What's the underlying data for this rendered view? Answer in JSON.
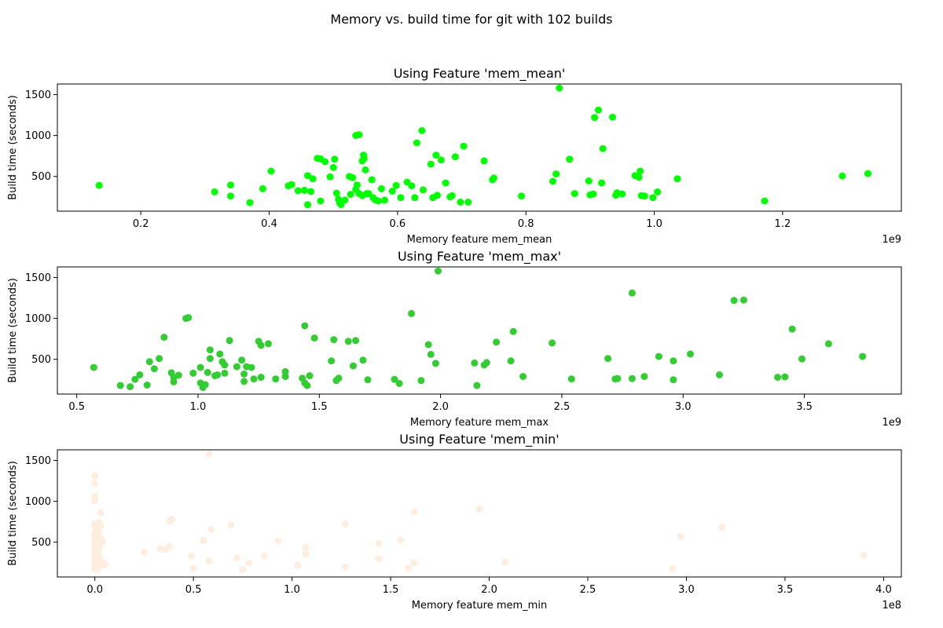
{
  "figure": {
    "suptitle": "Memory vs. build time for git with 102 builds"
  },
  "chart_data": [
    {
      "type": "scatter",
      "title": "Using Feature 'mem_mean'",
      "xlabel": "Memory feature mem_mean",
      "ylabel": "Build time (seconds)",
      "x_offset_label": "1e9",
      "x_ticks": [
        0.2,
        0.4,
        0.6,
        0.8,
        1.0,
        1.2
      ],
      "x_tick_labels": [
        "0.2",
        "0.4",
        "0.6",
        "0.8",
        "1.0",
        "1.2"
      ],
      "y_ticks": [
        500,
        1000,
        1500
      ],
      "y_tick_labels": [
        "500",
        "1000",
        "1500"
      ],
      "xlim": [
        0.07,
        1.385
      ],
      "ylim": [
        75,
        1630
      ],
      "color": "#00ff00",
      "grid": false,
      "points": [
        [
          0.135,
          390
        ],
        [
          0.315,
          310
        ],
        [
          0.34,
          395
        ],
        [
          0.34,
          260
        ],
        [
          0.37,
          180
        ],
        [
          0.39,
          350
        ],
        [
          0.403,
          565
        ],
        [
          0.43,
          385
        ],
        [
          0.435,
          400
        ],
        [
          0.445,
          325
        ],
        [
          0.455,
          330
        ],
        [
          0.46,
          155
        ],
        [
          0.46,
          510
        ],
        [
          0.465,
          315
        ],
        [
          0.468,
          470
        ],
        [
          0.475,
          720
        ],
        [
          0.48,
          715
        ],
        [
          0.48,
          200
        ],
        [
          0.487,
          680
        ],
        [
          0.495,
          495
        ],
        [
          0.5,
          610
        ],
        [
          0.502,
          710
        ],
        [
          0.505,
          295
        ],
        [
          0.508,
          220
        ],
        [
          0.51,
          175
        ],
        [
          0.512,
          155
        ],
        [
          0.518,
          210
        ],
        [
          0.525,
          500
        ],
        [
          0.527,
          280
        ],
        [
          0.53,
          485
        ],
        [
          0.535,
          340
        ],
        [
          0.535,
          1000
        ],
        [
          0.537,
          395
        ],
        [
          0.54,
          1010
        ],
        [
          0.54,
          290
        ],
        [
          0.545,
          265
        ],
        [
          0.545,
          690
        ],
        [
          0.547,
          760
        ],
        [
          0.548,
          720
        ],
        [
          0.55,
          580
        ],
        [
          0.552,
          290
        ],
        [
          0.555,
          290
        ],
        [
          0.56,
          460
        ],
        [
          0.562,
          240
        ],
        [
          0.565,
          215
        ],
        [
          0.57,
          200
        ],
        [
          0.575,
          350
        ],
        [
          0.58,
          210
        ],
        [
          0.592,
          320
        ],
        [
          0.598,
          390
        ],
        [
          0.605,
          240
        ],
        [
          0.615,
          430
        ],
        [
          0.622,
          385
        ],
        [
          0.627,
          240
        ],
        [
          0.63,
          910
        ],
        [
          0.638,
          1060
        ],
        [
          0.64,
          335
        ],
        [
          0.652,
          650
        ],
        [
          0.655,
          240
        ],
        [
          0.66,
          760
        ],
        [
          0.662,
          270
        ],
        [
          0.668,
          700
        ],
        [
          0.675,
          420
        ],
        [
          0.682,
          250
        ],
        [
          0.685,
          265
        ],
        [
          0.69,
          740
        ],
        [
          0.698,
          185
        ],
        [
          0.703,
          870
        ],
        [
          0.71,
          185
        ],
        [
          0.735,
          690
        ],
        [
          0.748,
          460
        ],
        [
          0.75,
          480
        ],
        [
          0.793,
          260
        ],
        [
          0.842,
          440
        ],
        [
          0.847,
          530
        ],
        [
          0.852,
          1580
        ],
        [
          0.868,
          710
        ],
        [
          0.876,
          290
        ],
        [
          0.898,
          445
        ],
        [
          0.9,
          275
        ],
        [
          0.905,
          285
        ],
        [
          0.907,
          1220
        ],
        [
          0.913,
          1310
        ],
        [
          0.918,
          420
        ],
        [
          0.92,
          840
        ],
        [
          0.935,
          1225
        ],
        [
          0.94,
          270
        ],
        [
          0.942,
          300
        ],
        [
          0.95,
          285
        ],
        [
          0.97,
          510
        ],
        [
          0.976,
          490
        ],
        [
          0.978,
          565
        ],
        [
          0.98,
          265
        ],
        [
          0.985,
          260
        ],
        [
          0.998,
          240
        ],
        [
          1.005,
          310
        ],
        [
          1.036,
          470
        ],
        [
          1.172,
          200
        ],
        [
          1.293,
          505
        ],
        [
          1.333,
          535
        ]
      ]
    },
    {
      "type": "scatter",
      "title": "Using Feature 'mem_max'",
      "xlabel": "Memory feature mem_max",
      "ylabel": "Build time (seconds)",
      "x_offset_label": "1e9",
      "x_ticks": [
        0.5,
        1.0,
        1.5,
        2.0,
        2.5,
        3.0,
        3.5
      ],
      "x_tick_labels": [
        "0.5",
        "1.0",
        "1.5",
        "2.0",
        "2.5",
        "3.0",
        "3.5"
      ],
      "y_ticks": [
        500,
        1000,
        1500
      ],
      "y_tick_labels": [
        "500",
        "1000",
        "1500"
      ],
      "xlim": [
        0.42,
        3.9
      ],
      "ylim": [
        75,
        1630
      ],
      "color": "#33cc33",
      "grid": false,
      "points": [
        [
          0.57,
          400
        ],
        [
          0.68,
          180
        ],
        [
          0.72,
          165
        ],
        [
          0.74,
          255
        ],
        [
          0.76,
          310
        ],
        [
          0.79,
          185
        ],
        [
          0.8,
          470
        ],
        [
          0.82,
          385
        ],
        [
          0.84,
          510
        ],
        [
          0.86,
          770
        ],
        [
          0.89,
          335
        ],
        [
          0.9,
          225
        ],
        [
          0.9,
          280
        ],
        [
          0.92,
          305
        ],
        [
          0.95,
          1000
        ],
        [
          0.96,
          1010
        ],
        [
          0.98,
          330
        ],
        [
          1.01,
          400
        ],
        [
          1.01,
          210
        ],
        [
          1.02,
          155
        ],
        [
          1.03,
          190
        ],
        [
          1.04,
          340
        ],
        [
          1.05,
          615
        ],
        [
          1.05,
          510
        ],
        [
          1.07,
          300
        ],
        [
          1.08,
          310
        ],
        [
          1.09,
          565
        ],
        [
          1.1,
          470
        ],
        [
          1.11,
          330
        ],
        [
          1.11,
          430
        ],
        [
          1.13,
          730
        ],
        [
          1.16,
          410
        ],
        [
          1.18,
          490
        ],
        [
          1.19,
          320
        ],
        [
          1.19,
          230
        ],
        [
          1.2,
          410
        ],
        [
          1.22,
          400
        ],
        [
          1.23,
          260
        ],
        [
          1.25,
          720
        ],
        [
          1.26,
          670
        ],
        [
          1.26,
          280
        ],
        [
          1.29,
          690
        ],
        [
          1.32,
          260
        ],
        [
          1.36,
          290
        ],
        [
          1.36,
          350
        ],
        [
          1.43,
          270
        ],
        [
          1.44,
          910
        ],
        [
          1.44,
          210
        ],
        [
          1.45,
          180
        ],
        [
          1.46,
          300
        ],
        [
          1.48,
          760
        ],
        [
          1.55,
          480
        ],
        [
          1.56,
          740
        ],
        [
          1.57,
          240
        ],
        [
          1.58,
          270
        ],
        [
          1.62,
          720
        ],
        [
          1.64,
          420
        ],
        [
          1.65,
          730
        ],
        [
          1.68,
          490
        ],
        [
          1.7,
          250
        ],
        [
          1.81,
          255
        ],
        [
          1.83,
          205
        ],
        [
          1.88,
          1060
        ],
        [
          1.92,
          240
        ],
        [
          1.95,
          680
        ],
        [
          1.96,
          560
        ],
        [
          1.98,
          450
        ],
        [
          1.99,
          1580
        ],
        [
          2.14,
          455
        ],
        [
          2.15,
          180
        ],
        [
          2.18,
          430
        ],
        [
          2.19,
          460
        ],
        [
          2.23,
          710
        ],
        [
          2.29,
          480
        ],
        [
          2.3,
          840
        ],
        [
          2.34,
          290
        ],
        [
          2.46,
          700
        ],
        [
          2.54,
          260
        ],
        [
          2.69,
          510
        ],
        [
          2.72,
          260
        ],
        [
          2.73,
          265
        ],
        [
          2.79,
          1310
        ],
        [
          2.79,
          265
        ],
        [
          2.84,
          290
        ],
        [
          2.9,
          535
        ],
        [
          2.96,
          480
        ],
        [
          2.96,
          250
        ],
        [
          3.03,
          565
        ],
        [
          3.15,
          310
        ],
        [
          3.21,
          1220
        ],
        [
          3.25,
          1225
        ],
        [
          3.39,
          280
        ],
        [
          3.42,
          285
        ],
        [
          3.45,
          870
        ],
        [
          3.49,
          505
        ],
        [
          3.6,
          690
        ],
        [
          3.74,
          535
        ]
      ]
    },
    {
      "type": "scatter",
      "title": "Using Feature 'mem_min'",
      "xlabel": "Memory feature mem_min",
      "ylabel": "Build time (seconds)",
      "x_offset_label": "1e8",
      "x_ticks": [
        0.0,
        0.5,
        1.0,
        1.5,
        2.0,
        2.5,
        3.0,
        3.5,
        4.0
      ],
      "x_tick_labels": [
        "0.0",
        "0.5",
        "1.0",
        "1.5",
        "2.0",
        "2.5",
        "3.0",
        "3.5",
        "4.0"
      ],
      "y_ticks": [
        500,
        1000,
        1500
      ],
      "y_tick_labels": [
        "500",
        "1000",
        "1500"
      ],
      "xlim": [
        -0.19,
        4.09
      ],
      "ylim": [
        75,
        1630
      ],
      "color": "#fdeee0",
      "grid": false,
      "points": [
        [
          0.0,
          1310
        ],
        [
          0.0,
          1220
        ],
        [
          0.0,
          1060
        ],
        [
          0.0,
          1010
        ],
        [
          0.0,
          720
        ],
        [
          0.0,
          690
        ],
        [
          0.0,
          600
        ],
        [
          0.0,
          560
        ],
        [
          0.0,
          510
        ],
        [
          0.0,
          480
        ],
        [
          0.0,
          440
        ],
        [
          0.0,
          400
        ],
        [
          0.0,
          360
        ],
        [
          0.0,
          320
        ],
        [
          0.0,
          290
        ],
        [
          0.0,
          260
        ],
        [
          0.0,
          230
        ],
        [
          0.0,
          200
        ],
        [
          0.0,
          170
        ],
        [
          0.01,
          650
        ],
        [
          0.01,
          520
        ],
        [
          0.01,
          470
        ],
        [
          0.01,
          380
        ],
        [
          0.01,
          300
        ],
        [
          0.01,
          250
        ],
        [
          0.01,
          210
        ],
        [
          0.02,
          740
        ],
        [
          0.02,
          610
        ],
        [
          0.02,
          430
        ],
        [
          0.02,
          330
        ],
        [
          0.02,
          280
        ],
        [
          0.02,
          190
        ],
        [
          0.03,
          860
        ],
        [
          0.03,
          700
        ],
        [
          0.03,
          540
        ],
        [
          0.03,
          490
        ],
        [
          0.03,
          240
        ],
        [
          0.04,
          510
        ],
        [
          0.04,
          260
        ],
        [
          0.05,
          220
        ],
        [
          0.25,
          380
        ],
        [
          0.33,
          420
        ],
        [
          0.36,
          415
        ],
        [
          0.38,
          450
        ],
        [
          0.38,
          760
        ],
        [
          0.39,
          780
        ],
        [
          0.49,
          330
        ],
        [
          0.5,
          180
        ],
        [
          0.55,
          520
        ],
        [
          0.58,
          1580
        ],
        [
          0.58,
          270
        ],
        [
          0.59,
          660
        ],
        [
          0.69,
          710
        ],
        [
          0.72,
          310
        ],
        [
          0.75,
          165
        ],
        [
          0.78,
          250
        ],
        [
          0.86,
          330
        ],
        [
          0.93,
          515
        ],
        [
          1.03,
          220
        ],
        [
          1.07,
          440
        ],
        [
          1.07,
          360
        ],
        [
          1.27,
          725
        ],
        [
          1.27,
          195
        ],
        [
          1.44,
          485
        ],
        [
          1.44,
          300
        ],
        [
          1.55,
          530
        ],
        [
          1.59,
          180
        ],
        [
          1.62,
          870
        ],
        [
          1.62,
          250
        ],
        [
          1.95,
          905
        ],
        [
          2.08,
          255
        ],
        [
          2.93,
          175
        ],
        [
          2.97,
          570
        ],
        [
          3.18,
          685
        ],
        [
          3.9,
          340
        ]
      ]
    }
  ]
}
